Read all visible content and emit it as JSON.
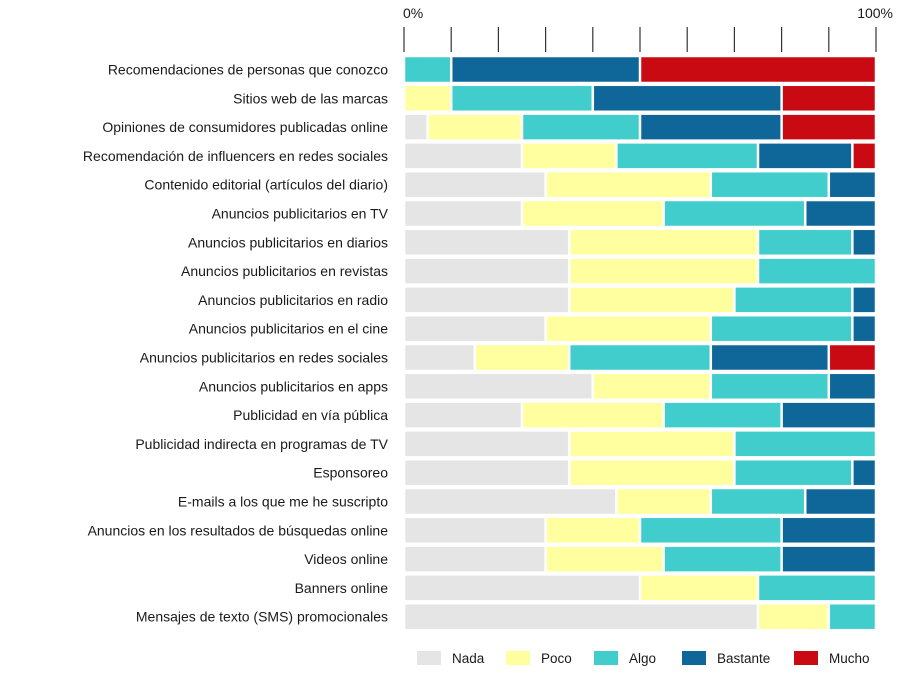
{
  "chart_data": {
    "type": "bar",
    "orientation": "horizontal",
    "stacked": true,
    "normalized": true,
    "title": "",
    "xlabel": "",
    "ylabel": "",
    "xlim": [
      0,
      100
    ],
    "x_tick_labels": {
      "start": "0%",
      "end": "100%"
    },
    "x_ticks": [
      0,
      10,
      20,
      30,
      40,
      50,
      60,
      70,
      80,
      90,
      100
    ],
    "legend_position": "bottom",
    "categories": [
      "Recomendaciones de personas que conozco",
      "Sitios web de las marcas",
      "Opiniones de consumidores publicadas online",
      "Recomendación de influencers en redes sociales",
      "Contenido editorial (artículos del diario)",
      "Anuncios publicitarios en TV",
      "Anuncios publicitarios en diarios",
      "Anuncios publicitarios en revistas",
      "Anuncios publicitarios en radio",
      "Anuncios publicitarios en el cine",
      "Anuncios publicitarios en redes sociales",
      "Anuncios publicitarios en apps",
      "Publicidad en vía pública",
      "Publicidad indirecta en programas de TV",
      "Esponsoreo",
      "E-mails a los que me he suscripto",
      "Anuncios en los resultados de búsquedas online",
      "Videos online",
      "Banners online",
      "Mensajes de texto (SMS) promocionales"
    ],
    "series": [
      {
        "name": "Nada",
        "color": "#e5e5e5",
        "values": [
          0,
          0,
          5,
          25,
          30,
          25,
          35,
          35,
          35,
          30,
          15,
          40,
          25,
          35,
          35,
          45,
          30,
          30,
          50,
          75
        ]
      },
      {
        "name": "Poco",
        "color": "#ffffa0",
        "values": [
          0,
          10,
          20,
          20,
          35,
          30,
          40,
          40,
          35,
          35,
          20,
          25,
          30,
          35,
          35,
          20,
          20,
          25,
          25,
          15
        ]
      },
      {
        "name": "Algo",
        "color": "#40cdcb",
        "values": [
          10,
          30,
          25,
          30,
          25,
          30,
          20,
          25,
          25,
          30,
          30,
          25,
          25,
          30,
          25,
          20,
          30,
          25,
          25,
          10
        ]
      },
      {
        "name": "Bastante",
        "color": "#0e6699",
        "values": [
          40,
          40,
          30,
          20,
          10,
          15,
          5,
          0,
          5,
          5,
          25,
          10,
          20,
          0,
          5,
          15,
          20,
          20,
          0,
          0
        ]
      },
      {
        "name": "Mucho",
        "color": "#c90a13",
        "values": [
          50,
          20,
          20,
          5,
          0,
          0,
          0,
          0,
          0,
          0,
          10,
          0,
          0,
          0,
          0,
          0,
          0,
          0,
          0,
          0
        ]
      }
    ]
  }
}
